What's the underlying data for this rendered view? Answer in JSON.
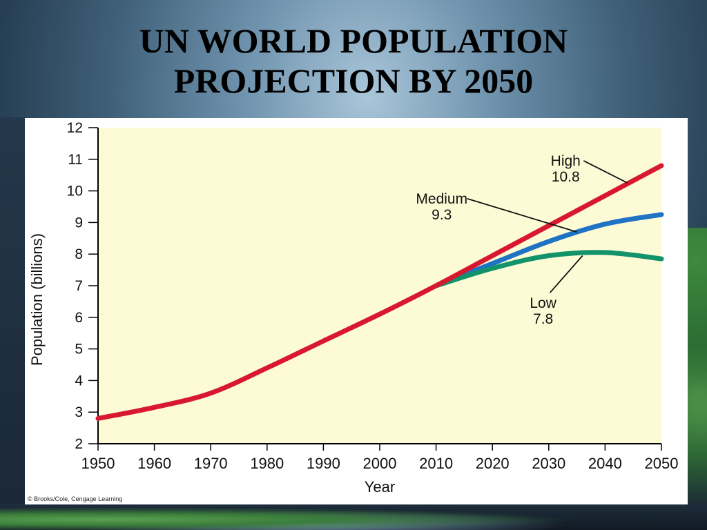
{
  "slide": {
    "title_line1": "UN WORLD POPULATION",
    "title_line2": "PROJECTION BY 2050",
    "credit": "© Brooks/Cole, Cengage Learning"
  },
  "chart_data": {
    "type": "line",
    "title": "",
    "xlabel": "Year",
    "ylabel": "Population (billions)",
    "xlim": [
      1950,
      2050
    ],
    "ylim": [
      2,
      12
    ],
    "xticks": [
      1950,
      1960,
      1970,
      1980,
      1990,
      2000,
      2010,
      2020,
      2030,
      2040,
      2050
    ],
    "yticks": [
      2,
      3,
      4,
      5,
      6,
      7,
      8,
      9,
      10,
      11,
      12
    ],
    "grid": false,
    "background_color": "#fdfbd6",
    "series": [
      {
        "key": "medium",
        "color": "#1f73c4",
        "x": [
          2010,
          2020,
          2030,
          2040,
          2050
        ],
        "y": [
          7.0,
          7.7,
          8.4,
          8.95,
          9.25
        ]
      },
      {
        "key": "low",
        "color": "#12936a",
        "x": [
          2010,
          2020,
          2030,
          2040,
          2050
        ],
        "y": [
          7.0,
          7.55,
          7.95,
          8.05,
          7.85
        ]
      },
      {
        "key": "high",
        "color": "#d8182f",
        "x": [
          1950,
          1960,
          1970,
          1980,
          1990,
          2000,
          2010,
          2020,
          2030,
          2040,
          2050
        ],
        "y": [
          2.8,
          3.15,
          3.6,
          4.4,
          5.25,
          6.1,
          7.0,
          7.95,
          8.9,
          9.85,
          10.8
        ]
      }
    ],
    "annotations": [
      {
        "key": "high",
        "name": "High",
        "value": "10.8",
        "point_x": 2044,
        "point_y": 10.25,
        "label_x": 2033,
        "label_y": 10.8
      },
      {
        "key": "medium",
        "name": "Medium",
        "value": "9.3",
        "point_x": 2035,
        "point_y": 8.7,
        "label_x": 2011,
        "label_y": 9.6
      },
      {
        "key": "low",
        "name": "Low",
        "value": "7.8",
        "point_x": 2036,
        "point_y": 7.95,
        "label_x": 2029,
        "label_y": 6.3
      }
    ]
  }
}
